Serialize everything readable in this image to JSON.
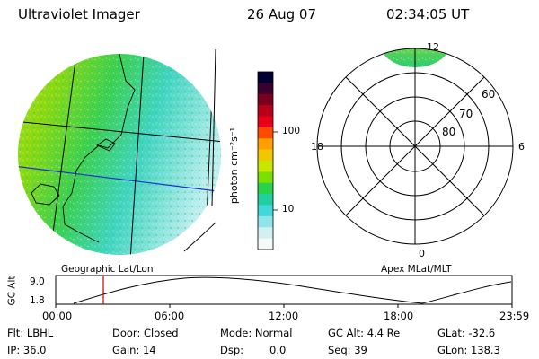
{
  "header": {
    "instrument": "Ultraviolet Imager",
    "date": "26 Aug 07",
    "time": "02:34:05 UT"
  },
  "left_map": {
    "caption": "Geographic Lat/Lon"
  },
  "colorbar": {
    "unit_label": "photon cm⁻²s⁻¹",
    "ticks": [
      "100",
      "10"
    ],
    "scale": "log",
    "colors": [
      "#000033",
      "#3a0030",
      "#7a0020",
      "#b80018",
      "#e8001a",
      "#ff4a00",
      "#ffa000",
      "#f0c800",
      "#c8e600",
      "#7ae000",
      "#28d24a",
      "#20d0a0",
      "#40d8d8",
      "#90e4e8",
      "#d2f0f2",
      "#f4fafa"
    ]
  },
  "polar_plot": {
    "caption": "Apex MLat/MLT",
    "mlt_labels": [
      "12",
      "18",
      "6",
      "0"
    ],
    "mlat_labels": [
      "60",
      "70",
      "80"
    ]
  },
  "altitude_plot": {
    "ylabel": "GC Alt",
    "yticks": [
      "9.0",
      "1.8"
    ],
    "xticks": [
      "00:00",
      "06:00",
      "12:00",
      "18:00",
      "23:59"
    ],
    "marker_color": "#cc0000"
  },
  "info": {
    "flt": "Flt: LBHL",
    "ip": "IP: 36.0",
    "door": "Door: Closed",
    "gain": "Gain: 14",
    "mode": "Mode: Normal",
    "dsp_label": "Dsp:",
    "dsp_value": "0.0",
    "gcalt": "GC Alt: 4.4 Re",
    "seq": "Seq: 39",
    "glat": "GLat: -32.6",
    "glon": "GLon: 138.3"
  }
}
